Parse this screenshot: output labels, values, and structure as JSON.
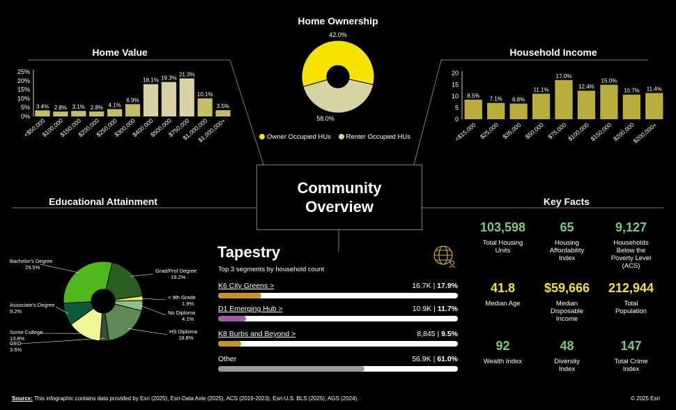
{
  "colors": {
    "gold": "#d8c94a",
    "cream": "#d7d2a2",
    "ownerYellow": "#f4e400",
    "bar": "#b9ad3c",
    "green": "#7bc97f",
    "yellowVal": "#f2e23a",
    "white": "#ffffff"
  },
  "center": {
    "line1": "Community",
    "line2": "Overview"
  },
  "home_ownership": {
    "title": "Home Ownership",
    "chart_data": {
      "type": "pie",
      "labels": [
        "Owner Occupied HUs",
        "Renter Occupied HUs"
      ],
      "values": [
        58.0,
        42.0
      ],
      "value_labels": [
        "58.0%",
        "42.0%"
      ],
      "colors": [
        "#f4e400",
        "#d7d2a2"
      ]
    },
    "legend": [
      {
        "label": "Owner Occupied HUs",
        "color": "#f4e400"
      },
      {
        "label": "Renter Occupied HUs",
        "color": "#d7d2a2"
      }
    ]
  },
  "home_value": {
    "title": "Home Value",
    "chart_data": {
      "type": "bar",
      "categories": [
        "<$50,000",
        "$100,000",
        "$150,000",
        "$200,000",
        "$250,000",
        "$300,000",
        "$400,000",
        "$500,000",
        "$750,000",
        "$1,000,000",
        "$1,000,000+"
      ],
      "values": [
        3.4,
        2.8,
        3.1,
        2.8,
        4.1,
        6.9,
        18.1,
        19.3,
        21.3,
        10.1,
        3.5
      ],
      "value_labels": [
        "3.4%",
        "2.8%",
        "3.1%",
        "2.8%",
        "4.1%",
        "6.9%",
        "18.1%",
        "19.3%",
        "21.3%",
        "10.1%",
        "3.5%"
      ],
      "colors": [
        "#c6bd67",
        "#c6bd67",
        "#c6bd67",
        "#c6bd67",
        "#c6bd67",
        "#c6bd67",
        "#d9d2a4",
        "#d9d2a4",
        "#d9d2a4",
        "#c6bd67",
        "#c6bd67"
      ],
      "yticks": [
        "0%",
        "5%",
        "10%",
        "15%",
        "20%",
        "25%"
      ],
      "ylim": [
        0,
        25
      ]
    }
  },
  "household_income": {
    "title": "Household Income",
    "chart_data": {
      "type": "bar",
      "categories": [
        "<$15,000",
        "$25,000",
        "$35,000",
        "$50,000",
        "$75,000",
        "$100,000",
        "$150,000",
        "$200,000",
        "$200,000+"
      ],
      "values": [
        8.5,
        7.1,
        6.8,
        11.1,
        17.0,
        12.4,
        15.0,
        10.7,
        11.4
      ],
      "value_labels": [
        "8.5%",
        "7.1%",
        "6.8%",
        "11.1%",
        "17.0%",
        "12.4%",
        "15.0%",
        "10.7%",
        "11.4%"
      ],
      "yticks": [
        "0",
        "5",
        "10",
        "15",
        "20"
      ],
      "ylim": [
        0,
        20
      ]
    }
  },
  "education": {
    "title": "Educational Attainment",
    "chart_data": {
      "type": "pie",
      "labels": [
        "Bachelor's Degree",
        "Grad/Prof Degree",
        "< 9th Grade",
        "No Diploma",
        "HS Diploma",
        "GED",
        "Some College",
        "Associate's Degree"
      ],
      "values": [
        29.5,
        19.2,
        1.9,
        4.1,
        18.8,
        3.6,
        13.8,
        9.2
      ],
      "value_labels": [
        "29.5%",
        "19.2%",
        "1.9%",
        "4.1%",
        "18.8%",
        "3.6%",
        "13.8%",
        "9.2%"
      ],
      "colors": [
        "#4fb81c",
        "#2b5e20",
        "#e8e84a",
        "#8fc08a",
        "#5e8a55",
        "#3a4f34",
        "#f2f594",
        "#0e5a3c"
      ]
    }
  },
  "tapestry": {
    "title": "Tapestry",
    "subtitle": "Top 3 segments by household count",
    "rows": [
      {
        "name": "K6 City Greens >",
        "count": "16.7K",
        "pct": "17.9%",
        "value": 17.9,
        "color": "#c8942a"
      },
      {
        "name": "D1 Emerging Hub >",
        "count": "10.9K",
        "pct": "11.7%",
        "value": 11.7,
        "color": "#a45aa8"
      },
      {
        "name": "K8 Burbs and Beyond >",
        "count": "8,845",
        "pct": "9.5%",
        "value": 9.5,
        "color": "#c8942a"
      },
      {
        "name": "Other",
        "count": "56.9K",
        "pct": "61.0%",
        "value": 61.0,
        "color": "#9a9a9a"
      }
    ]
  },
  "key_facts": {
    "title": "Key Facts",
    "items": [
      {
        "value": "103,598",
        "label": "Total Housing Units",
        "color": "#7bc97f"
      },
      {
        "value": "65",
        "label": "Housing Affordability Index",
        "color": "#7bc97f"
      },
      {
        "value": "9,127",
        "label": "Households Below the Poverty Level (ACS)",
        "color": "#7bc97f"
      },
      {
        "value": "41.8",
        "label": "Median Age",
        "color": "#f2e23a"
      },
      {
        "value": "$59,666",
        "label": "Median Disposable Income",
        "color": "#f2e23a"
      },
      {
        "value": "212,944",
        "label": "Total Population",
        "color": "#f2e23a"
      },
      {
        "value": "92",
        "label": "Wealth Index",
        "color": "#7bc97f"
      },
      {
        "value": "48",
        "label": "Diversity Index",
        "color": "#7bc97f"
      },
      {
        "value": "147",
        "label": "Total Crime Index",
        "color": "#7bc97f"
      }
    ]
  },
  "footer": {
    "source_label": "Source:",
    "source_text": "This infographic contains data provided by Esri (2025), Esri-Data Axle (2025), ACS (2019-2023), Esri-U.S. BLS (2025), AGS (2024).",
    "copyright": "© 2025 Esri"
  }
}
